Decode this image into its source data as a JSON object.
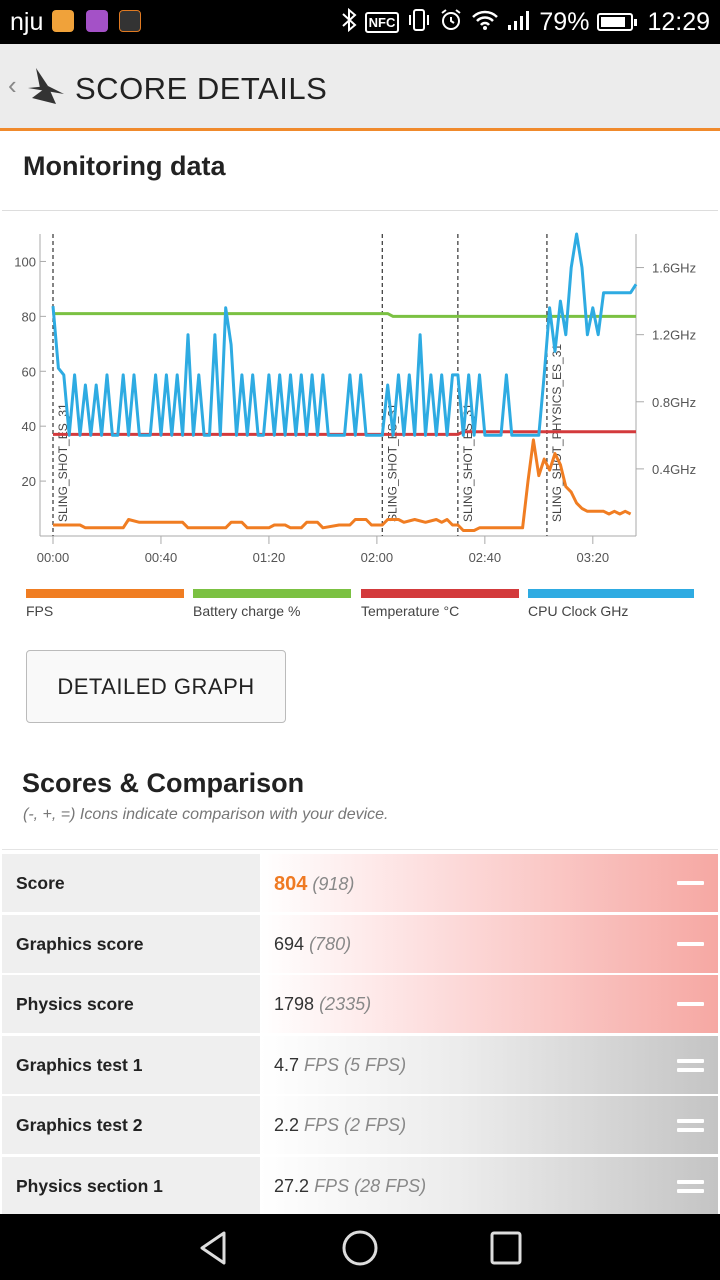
{
  "status_bar": {
    "carrier": "nju",
    "battery_percent": "79%",
    "time": "12:29",
    "icons": [
      "notification-app-icon",
      "gallery-app-icon",
      "3dmark-app-icon",
      "bluetooth-icon",
      "nfc-icon",
      "vibrate-icon",
      "alarm-icon",
      "wifi-icon",
      "signal-icon",
      "battery-icon"
    ]
  },
  "app_bar": {
    "back_symbol": "‹",
    "title": "SCORE DETAILS"
  },
  "monitoring": {
    "heading": "Monitoring data"
  },
  "chart_data": {
    "type": "line",
    "x_ticks": [
      "00:00",
      "00:40",
      "01:20",
      "02:00",
      "02:40",
      "03:20"
    ],
    "x_range_seconds": [
      0,
      216
    ],
    "y_left": {
      "ticks": [
        "20",
        "40",
        "60",
        "80",
        "100"
      ],
      "range": [
        0,
        110
      ]
    },
    "y_right": {
      "ticks": [
        "0.4GHz",
        "0.8GHz",
        "1.2GHz",
        "1.6GHz"
      ],
      "range_ghz": [
        0,
        1.8
      ]
    },
    "markers": [
      {
        "t": 0,
        "label": "SLING_SHOT_ES_31"
      },
      {
        "t": 122,
        "label": "SLING_SHOT_ES_31"
      },
      {
        "t": 150,
        "label": "SLING_SHOT_ES_31"
      },
      {
        "t": 183,
        "label": "SLING_SHOT_PHYSICS_ES_31"
      }
    ],
    "series": [
      {
        "name": "FPS",
        "color": "#f07d22",
        "points": [
          [
            0,
            4
          ],
          [
            10,
            4
          ],
          [
            12,
            3
          ],
          [
            26,
            3
          ],
          [
            28,
            6
          ],
          [
            32,
            5
          ],
          [
            48,
            5
          ],
          [
            50,
            3
          ],
          [
            64,
            3
          ],
          [
            66,
            5
          ],
          [
            70,
            5
          ],
          [
            72,
            3
          ],
          [
            80,
            3
          ],
          [
            82,
            4
          ],
          [
            86,
            4
          ],
          [
            88,
            3
          ],
          [
            92,
            3
          ],
          [
            94,
            5
          ],
          [
            98,
            5
          ],
          [
            100,
            3
          ],
          [
            106,
            4
          ],
          [
            110,
            4
          ],
          [
            112,
            6
          ],
          [
            116,
            6
          ],
          [
            118,
            4
          ],
          [
            120,
            4
          ],
          [
            122,
            4
          ],
          [
            124,
            6
          ],
          [
            128,
            6
          ],
          [
            130,
            5
          ],
          [
            134,
            6
          ],
          [
            138,
            5
          ],
          [
            142,
            6
          ],
          [
            144,
            5
          ],
          [
            146,
            6
          ],
          [
            148,
            4
          ],
          [
            150,
            4
          ],
          [
            152,
            2
          ],
          [
            156,
            2
          ],
          [
            158,
            3
          ],
          [
            172,
            3
          ],
          [
            174,
            3
          ],
          [
            176,
            20
          ],
          [
            178,
            35
          ],
          [
            180,
            22
          ],
          [
            182,
            28
          ],
          [
            184,
            24
          ],
          [
            186,
            30
          ],
          [
            188,
            26
          ],
          [
            190,
            18
          ],
          [
            192,
            16
          ],
          [
            194,
            12
          ],
          [
            196,
            10
          ],
          [
            198,
            9
          ],
          [
            202,
            9
          ],
          [
            204,
            9
          ],
          [
            206,
            8
          ],
          [
            208,
            9
          ],
          [
            210,
            8
          ],
          [
            212,
            9
          ],
          [
            214,
            8
          ]
        ]
      },
      {
        "name": "Battery charge %",
        "color": "#7bc142",
        "points": [
          [
            0,
            81
          ],
          [
            124,
            81
          ],
          [
            126,
            80
          ],
          [
            216,
            80
          ]
        ]
      },
      {
        "name": "Temperature °C",
        "color": "#d33a3c",
        "points": [
          [
            0,
            37
          ],
          [
            150,
            37
          ],
          [
            152,
            38
          ],
          [
            216,
            38
          ]
        ]
      },
      {
        "name": "CPU Clock GHz",
        "color": "#2eabe2",
        "points": [
          [
            0,
            1.37
          ],
          [
            2,
            1.0
          ],
          [
            4,
            0.96
          ],
          [
            6,
            0.6
          ],
          [
            8,
            0.96
          ],
          [
            10,
            0.6
          ],
          [
            12,
            0.9
          ],
          [
            14,
            0.6
          ],
          [
            16,
            0.9
          ],
          [
            18,
            0.6
          ],
          [
            20,
            0.96
          ],
          [
            22,
            0.6
          ],
          [
            24,
            0.6
          ],
          [
            26,
            0.96
          ],
          [
            28,
            0.6
          ],
          [
            30,
            0.96
          ],
          [
            32,
            0.6
          ],
          [
            34,
            0.6
          ],
          [
            36,
            0.6
          ],
          [
            38,
            0.96
          ],
          [
            40,
            0.6
          ],
          [
            42,
            0.96
          ],
          [
            44,
            0.6
          ],
          [
            46,
            0.96
          ],
          [
            48,
            0.6
          ],
          [
            50,
            1.2
          ],
          [
            52,
            0.6
          ],
          [
            54,
            0.96
          ],
          [
            56,
            0.6
          ],
          [
            58,
            0.6
          ],
          [
            60,
            1.2
          ],
          [
            62,
            0.6
          ],
          [
            64,
            1.36
          ],
          [
            66,
            1.14
          ],
          [
            68,
            0.6
          ],
          [
            70,
            0.96
          ],
          [
            72,
            0.6
          ],
          [
            74,
            0.96
          ],
          [
            76,
            0.6
          ],
          [
            78,
            0.6
          ],
          [
            80,
            0.96
          ],
          [
            82,
            0.6
          ],
          [
            84,
            0.96
          ],
          [
            86,
            0.6
          ],
          [
            88,
            0.96
          ],
          [
            90,
            0.6
          ],
          [
            92,
            0.96
          ],
          [
            94,
            0.6
          ],
          [
            96,
            0.96
          ],
          [
            98,
            0.6
          ],
          [
            100,
            0.96
          ],
          [
            102,
            0.6
          ],
          [
            104,
            0.6
          ],
          [
            106,
            0.6
          ],
          [
            108,
            0.6
          ],
          [
            110,
            0.96
          ],
          [
            112,
            0.6
          ],
          [
            114,
            0.96
          ],
          [
            116,
            0.6
          ],
          [
            118,
            0.6
          ],
          [
            120,
            0.6
          ],
          [
            122,
            0.6
          ],
          [
            124,
            0.9
          ],
          [
            126,
            0.6
          ],
          [
            128,
            0.96
          ],
          [
            130,
            0.6
          ],
          [
            132,
            0.96
          ],
          [
            134,
            0.6
          ],
          [
            136,
            1.2
          ],
          [
            138,
            0.6
          ],
          [
            140,
            0.96
          ],
          [
            142,
            0.6
          ],
          [
            144,
            0.96
          ],
          [
            146,
            0.6
          ],
          [
            148,
            0.96
          ],
          [
            150,
            0.96
          ],
          [
            152,
            0.6
          ],
          [
            154,
            0.96
          ],
          [
            156,
            0.6
          ],
          [
            158,
            0.96
          ],
          [
            160,
            0.6
          ],
          [
            162,
            0.6
          ],
          [
            164,
            0.6
          ],
          [
            166,
            0.6
          ],
          [
            168,
            0.96
          ],
          [
            170,
            0.6
          ],
          [
            172,
            0.6
          ],
          [
            174,
            0.6
          ],
          [
            176,
            0.6
          ],
          [
            178,
            0.6
          ],
          [
            180,
            0.6
          ],
          [
            182,
            0.96
          ],
          [
            184,
            1.36
          ],
          [
            186,
            1.1
          ],
          [
            188,
            1.4
          ],
          [
            190,
            1.2
          ],
          [
            192,
            1.6
          ],
          [
            194,
            1.8
          ],
          [
            196,
            1.6
          ],
          [
            198,
            1.2
          ],
          [
            200,
            1.36
          ],
          [
            202,
            1.2
          ],
          [
            204,
            1.45
          ],
          [
            206,
            1.45
          ],
          [
            212,
            1.45
          ],
          [
            214,
            1.45
          ],
          [
            216,
            1.5
          ]
        ]
      }
    ]
  },
  "legend": [
    {
      "label": "FPS",
      "color": "#f07d22"
    },
    {
      "label": "Battery charge %",
      "color": "#7bc142"
    },
    {
      "label": "Temperature °C",
      "color": "#d33a3c"
    },
    {
      "label": "CPU Clock GHz",
      "color": "#2eabe2"
    }
  ],
  "buttons": {
    "detailed_graph": "DETAILED GRAPH"
  },
  "scores": {
    "heading": "Scores & Comparison",
    "subtitle": "(-, +, =) Icons indicate comparison with your device.",
    "rows": [
      {
        "label": "Score",
        "value": "804",
        "compare": "(918)",
        "icon": "minus"
      },
      {
        "label": "Graphics score",
        "value": "694",
        "compare": "(780)",
        "icon": "minus"
      },
      {
        "label": "Physics score",
        "value": "1798",
        "compare": "(2335)",
        "icon": "minus"
      },
      {
        "label": "Graphics test 1",
        "value": "4.7",
        "compare": "FPS (5 FPS)",
        "icon": "equal"
      },
      {
        "label": "Graphics test 2",
        "value": "2.2",
        "compare": "FPS (2 FPS)",
        "icon": "equal"
      },
      {
        "label": "Physics section 1",
        "value": "27.2",
        "compare": "FPS (28 FPS)",
        "icon": "equal"
      }
    ]
  },
  "nav_bar": {
    "buttons": [
      "back-nav-icon",
      "home-nav-icon",
      "recents-nav-icon"
    ]
  }
}
